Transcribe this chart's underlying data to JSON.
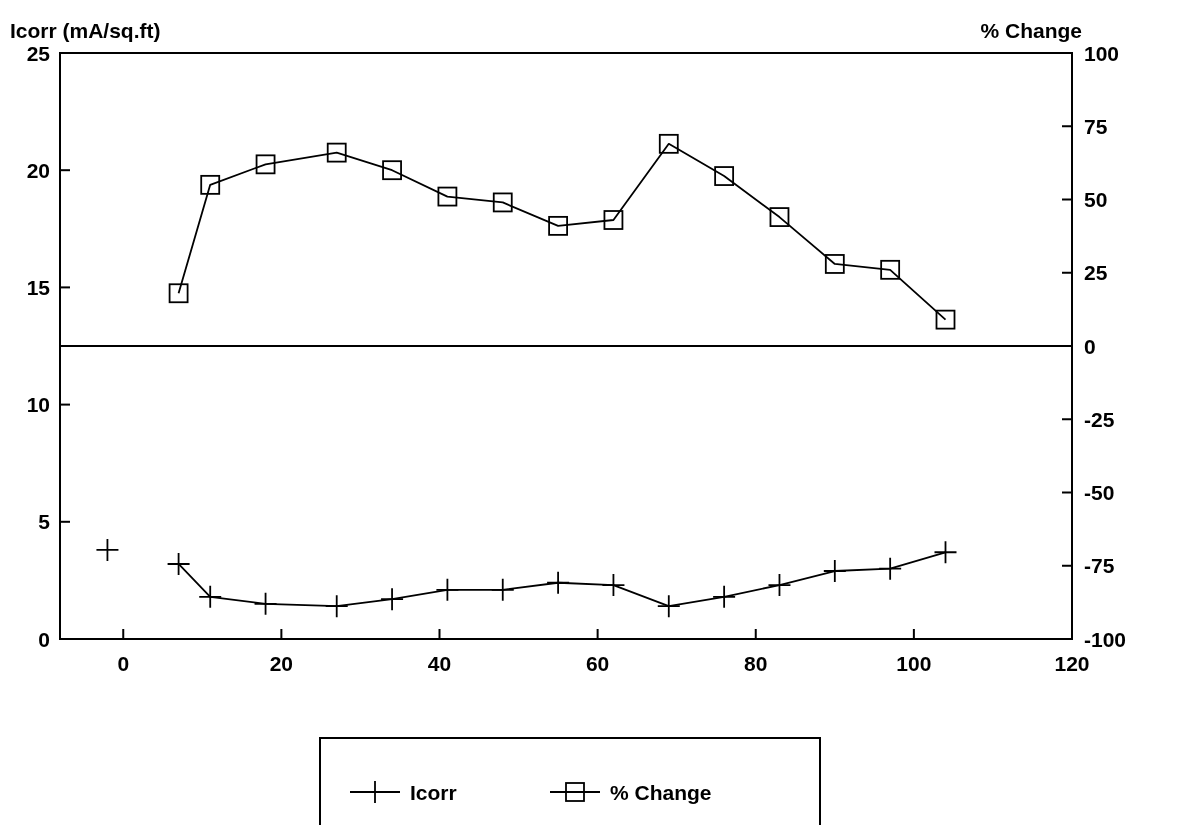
{
  "chart_data": {
    "type": "line",
    "ylabel": "Icorr (mA/sq.ft)",
    "y2label": "% Change",
    "xlim": [
      -8,
      120
    ],
    "xticks": [
      0,
      20,
      40,
      60,
      80,
      100,
      120
    ],
    "ylim": [
      0,
      25
    ],
    "yticks": [
      0,
      5,
      10,
      15,
      20,
      25
    ],
    "y2lim": [
      -100,
      100
    ],
    "y2ticks": [
      -100,
      -75,
      -50,
      -25,
      0,
      25,
      50,
      75,
      100
    ],
    "grid": false,
    "legend": "bottom",
    "ref_lines": [
      {
        "axis": "y2",
        "value": 0,
        "color": "#000000"
      }
    ],
    "series": [
      {
        "name": "Icorr",
        "color": "#000000",
        "marker": "cross",
        "x": [
          -2,
          3,
          7,
          11,
          18,
          27,
          34,
          41,
          48,
          55,
          62,
          69,
          76,
          83,
          90,
          97,
          104
        ],
        "values": [
          3.8,
          null,
          3.2,
          1.8,
          1.5,
          1.4,
          1.7,
          2.1,
          2.1,
          2.4,
          2.3,
          1.4,
          1.8,
          2.3,
          2.9,
          3.0,
          3.7
        ]
      },
      {
        "name": "% Change",
        "color": "#000000",
        "marker": "square",
        "axis": "y2",
        "x": [
          7,
          11,
          18,
          27,
          34,
          41,
          48,
          55,
          62,
          69,
          76,
          83,
          90,
          97,
          104
        ],
        "values": [
          18,
          55,
          62,
          66,
          60,
          51,
          49,
          41,
          43,
          69,
          58,
          44,
          28,
          26,
          9
        ]
      }
    ]
  }
}
